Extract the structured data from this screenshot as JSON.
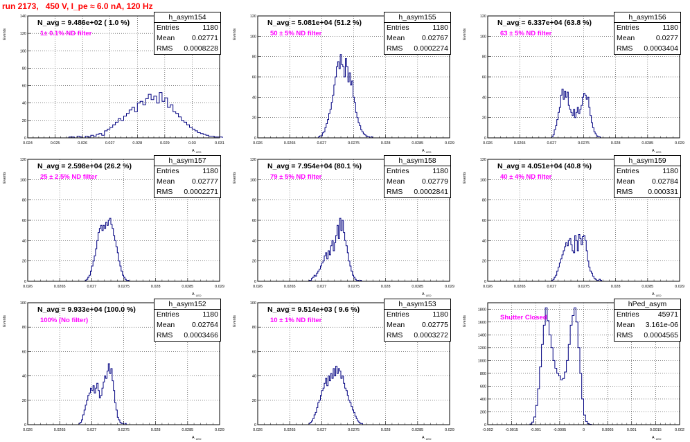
{
  "page": {
    "title": "run 2173,   450 V, I_pe ≈ 6.0 nA, 120 Hz",
    "title_color": "#ff0000",
    "hist_color": "#000080",
    "filter_color": "#ff00ff"
  },
  "panels": [
    {
      "hist_name": "h_asym154",
      "navg": "N_avg = 9.486e+02 ( 1.0 %)",
      "filter": "1± 0.1% ND filter",
      "stats": {
        "entries_label": "Entries",
        "entries": "1180",
        "mean_label": "Mean",
        "mean": "0.02771",
        "rms_label": "RMS",
        "rms": "0.0008228"
      }
    },
    {
      "hist_name": "h_asym155",
      "navg": "N_avg = 5.081e+04 (51.2 %)",
      "filter": "50 ± 5% ND filter",
      "stats": {
        "entries_label": "Entries",
        "entries": "1180",
        "mean_label": "Mean",
        "mean": "0.02767",
        "rms_label": "RMS",
        "rms": "0.0002274"
      }
    },
    {
      "hist_name": "h_asym156",
      "navg": "N_avg = 6.337e+04 (63.8 %)",
      "filter": "63 ± 5% ND filter",
      "stats": {
        "entries_label": "Entries",
        "entries": "1180",
        "mean_label": "Mean",
        "mean": "0.0277",
        "rms_label": "RMS",
        "rms": "0.0003404"
      }
    },
    {
      "hist_name": "h_asym157",
      "navg": "N_avg = 2.598e+04 (26.2 %)",
      "filter": "25 ± 2.5% ND filter",
      "stats": {
        "entries_label": "Entries",
        "entries": "1180",
        "mean_label": "Mean",
        "mean": "0.02777",
        "rms_label": "RMS",
        "rms": "0.0002271"
      }
    },
    {
      "hist_name": "h_asym158",
      "navg": "N_avg = 7.954e+04 (80.1 %)",
      "filter": "79 ± 5% ND filter",
      "stats": {
        "entries_label": "Entries",
        "entries": "1180",
        "mean_label": "Mean",
        "mean": "0.02779",
        "rms_label": "RMS",
        "rms": "0.0002841"
      }
    },
    {
      "hist_name": "h_asym159",
      "navg": "N_avg = 4.051e+04 (40.8 %)",
      "filter": "40 ± 4% ND filter",
      "stats": {
        "entries_label": "Entries",
        "entries": "1180",
        "mean_label": "Mean",
        "mean": "0.02784",
        "rms_label": "RMS",
        "rms": "0.000331"
      }
    },
    {
      "hist_name": "h_asym152",
      "navg": "N_avg = 9.933e+04 (100.0 %)",
      "filter": "100% (No filter)",
      "stats": {
        "entries_label": "Entries",
        "entries": "1180",
        "mean_label": "Mean",
        "mean": "0.02764",
        "rms_label": "RMS",
        "rms": "0.0003466"
      }
    },
    {
      "hist_name": "h_asym153",
      "navg": "N_avg = 9.514e+03 ( 9.6 %)",
      "filter": "10 ± 1% ND filter",
      "stats": {
        "entries_label": "Entries",
        "entries": "1180",
        "mean_label": "Mean",
        "mean": "0.02775",
        "rms_label": "RMS",
        "rms": "0.0003272"
      }
    },
    {
      "hist_name": "hPed_asym",
      "navg": "",
      "filter": "Shutter Closed",
      "stats": {
        "entries_label": "Entries",
        "entries": "45971",
        "mean_label": "Mean",
        "mean": "3.161e-06",
        "rms_label": "RMS",
        "rms": "0.0004565"
      }
    }
  ],
  "chart_data": [
    {
      "type": "histogram",
      "title": "h_asym154",
      "xlabel": "A_LED",
      "ylabel": "Events",
      "xlim": [
        0.024,
        0.031
      ],
      "ylim": [
        0,
        140
      ],
      "grid": true,
      "legend_position": "top-right",
      "xticks": [
        "0.024",
        "0.025",
        "0.026",
        "0.027",
        "0.028",
        "0.029",
        "0.03",
        "0.031"
      ],
      "yticks": [
        "0",
        "20",
        "40",
        "60",
        "80",
        "100",
        "120",
        "140"
      ],
      "bins": {
        "start": 0.0255,
        "width": 0.0001,
        "counts": [
          1,
          1,
          0,
          2,
          1,
          0,
          2,
          1,
          3,
          2,
          4,
          5,
          3,
          8,
          10,
          12,
          15,
          18,
          22,
          20,
          25,
          28,
          32,
          35,
          30,
          40,
          42,
          38,
          45,
          50,
          44,
          48,
          40,
          52,
          42,
          46,
          35,
          38,
          30,
          28,
          24,
          20,
          18,
          15,
          12,
          10,
          8,
          6,
          5,
          4,
          3,
          2,
          2,
          1,
          1,
          1
        ]
      }
    },
    {
      "type": "histogram",
      "title": "h_asym155",
      "xlabel": "A_LED",
      "ylabel": "Events",
      "xlim": [
        0.026,
        0.029
      ],
      "ylim": [
        0,
        120
      ],
      "grid": true,
      "legend_position": "top-right",
      "xticks": [
        "0.026",
        "0.0265",
        "0.027",
        "0.0275",
        "0.028",
        "0.0285",
        "0.029"
      ],
      "yticks": [
        "0",
        "20",
        "40",
        "60",
        "80",
        "100",
        "120"
      ],
      "bins": {
        "start": 0.02695,
        "width": 2e-05,
        "counts": [
          1,
          2,
          2,
          5,
          6,
          10,
          14,
          18,
          24,
          28,
          35,
          42,
          52,
          60,
          70,
          75,
          68,
          82,
          72,
          70,
          60,
          78,
          70,
          55,
          64,
          52,
          56,
          40,
          35,
          25,
          20,
          15,
          12,
          8,
          6,
          4,
          3,
          2,
          1,
          1,
          0,
          1
        ]
      }
    },
    {
      "type": "histogram",
      "title": "h_asym156",
      "xlabel": "A_LED",
      "ylabel": "Events",
      "xlim": [
        0.026,
        0.029
      ],
      "ylim": [
        0,
        120
      ],
      "grid": true,
      "legend_position": "top-right",
      "xticks": [
        "0.026",
        "0.0265",
        "0.027",
        "0.0275",
        "0.028",
        "0.0285",
        "0.029"
      ],
      "yticks": [
        "0",
        "20",
        "40",
        "60",
        "80",
        "100",
        "120"
      ],
      "bins": {
        "start": 0.027,
        "width": 2e-05,
        "counts": [
          1,
          3,
          8,
          12,
          18,
          25,
          30,
          42,
          48,
          38,
          46,
          40,
          45,
          32,
          28,
          25,
          22,
          28,
          20,
          25,
          30,
          24,
          28,
          32,
          40,
          44,
          42,
          38,
          40,
          30,
          22,
          15,
          10,
          6,
          4,
          2,
          1,
          1
        ]
      }
    },
    {
      "type": "histogram",
      "title": "h_asym157",
      "xlabel": "A_LED",
      "ylabel": "Events",
      "xlim": [
        0.026,
        0.029
      ],
      "ylim": [
        0,
        120
      ],
      "grid": true,
      "legend_position": "top-right",
      "xticks": [
        "0.026",
        "0.0265",
        "0.027",
        "0.0275",
        "0.028",
        "0.0285",
        "0.029"
      ],
      "yticks": [
        "0",
        "20",
        "40",
        "60",
        "80",
        "100",
        "120"
      ],
      "bins": {
        "start": 0.0269,
        "width": 2e-05,
        "counts": [
          1,
          2,
          4,
          6,
          10,
          15,
          20,
          25,
          32,
          40,
          48,
          52,
          55,
          50,
          55,
          52,
          58,
          55,
          60,
          62,
          56,
          52,
          45,
          40,
          34,
          28,
          20,
          15,
          10,
          6,
          4,
          2,
          1,
          1
        ]
      }
    },
    {
      "type": "histogram",
      "title": "h_asym158",
      "xlabel": "A_LED",
      "ylabel": "Events",
      "xlim": [
        0.026,
        0.029
      ],
      "ylim": [
        0,
        120
      ],
      "grid": true,
      "legend_position": "top-right",
      "xticks": [
        "0.026",
        "0.0265",
        "0.027",
        "0.0275",
        "0.028",
        "0.0285",
        "0.029"
      ],
      "yticks": [
        "0",
        "20",
        "40",
        "60",
        "80",
        "100",
        "120"
      ],
      "bins": {
        "start": 0.0268,
        "width": 2e-05,
        "counts": [
          1,
          1,
          3,
          4,
          6,
          5,
          8,
          10,
          12,
          15,
          18,
          20,
          25,
          28,
          22,
          30,
          26,
          35,
          40,
          30,
          38,
          45,
          55,
          42,
          62,
          50,
          60,
          48,
          40,
          35,
          28,
          20,
          15,
          10,
          6,
          4,
          2,
          1,
          1,
          0,
          1
        ]
      }
    },
    {
      "type": "histogram",
      "title": "h_asym159",
      "xlabel": "A_LED",
      "ylabel": "Events",
      "xlim": [
        0.026,
        0.029
      ],
      "ylim": [
        0,
        120
      ],
      "grid": true,
      "legend_position": "top-right",
      "xticks": [
        "0.026",
        "0.0265",
        "0.027",
        "0.0275",
        "0.028",
        "0.0285",
        "0.029"
      ],
      "yticks": [
        "0",
        "20",
        "40",
        "60",
        "80",
        "100",
        "120"
      ],
      "bins": {
        "start": 0.027,
        "width": 2e-05,
        "counts": [
          1,
          2,
          4,
          6,
          10,
          14,
          18,
          22,
          26,
          30,
          34,
          38,
          35,
          40,
          42,
          36,
          30,
          28,
          45,
          40,
          30,
          46,
          42,
          36,
          44,
          45,
          40,
          30,
          20,
          14,
          10,
          8,
          5,
          3,
          2,
          1,
          1,
          2,
          1
        ]
      }
    },
    {
      "type": "histogram",
      "title": "h_asym152",
      "xlabel": "A_LED",
      "ylabel": "Events",
      "xlim": [
        0.026,
        0.029
      ],
      "ylim": [
        0,
        100
      ],
      "grid": true,
      "legend_position": "top-right",
      "xticks": [
        "0.026",
        "0.0265",
        "0.027",
        "0.0275",
        "0.028",
        "0.0285",
        "0.029"
      ],
      "yticks": [
        "0",
        "20",
        "40",
        "60",
        "80",
        "100"
      ],
      "bins": {
        "start": 0.0268,
        "width": 2e-05,
        "counts": [
          1,
          2,
          4,
          8,
          12,
          16,
          20,
          24,
          26,
          30,
          28,
          32,
          26,
          30,
          34,
          28,
          22,
          24,
          30,
          35,
          40,
          38,
          44,
          50,
          42,
          46,
          36,
          28,
          18,
          12,
          6,
          4,
          2,
          1,
          1,
          0,
          1
        ]
      }
    },
    {
      "type": "histogram",
      "title": "h_asym153",
      "xlabel": "A_LED",
      "ylabel": "Events",
      "xlim": [
        0.026,
        0.029
      ],
      "ylim": [
        0,
        100
      ],
      "grid": true,
      "legend_position": "top-right",
      "xticks": [
        "0.026",
        "0.0265",
        "0.027",
        "0.0275",
        "0.028",
        "0.0285",
        "0.029"
      ],
      "yticks": [
        "0",
        "20",
        "40",
        "60",
        "80",
        "100"
      ],
      "bins": {
        "start": 0.0268,
        "width": 2e-05,
        "counts": [
          1,
          2,
          3,
          5,
          8,
          10,
          14,
          18,
          20,
          24,
          28,
          30,
          34,
          38,
          32,
          40,
          36,
          42,
          38,
          46,
          40,
          48,
          42,
          46,
          44,
          38,
          40,
          34,
          30,
          28,
          24,
          20,
          18,
          15,
          12,
          10,
          7,
          5,
          3,
          2,
          1,
          1
        ]
      }
    },
    {
      "type": "histogram",
      "title": "hPed_asym",
      "xlabel": "A_LED",
      "ylabel": "Events",
      "xlim": [
        -0.002,
        0.002
      ],
      "ylim": [
        0,
        1900
      ],
      "grid": true,
      "legend_position": "top-right",
      "xticks": [
        "-0.002",
        "-0.0015",
        "-0.001",
        "-0.0005",
        "0",
        "0.0005",
        "0.001",
        "0.0015",
        "0.002"
      ],
      "yticks": [
        "0",
        "200",
        "400",
        "600",
        "800",
        "1000",
        "1200",
        "1400",
        "1600",
        "1800"
      ],
      "bins": {
        "start": -0.00112,
        "width": 4e-05,
        "counts": [
          10,
          40,
          120,
          300,
          560,
          900,
          1250,
          1550,
          1820,
          1620,
          1400,
          1200,
          1000,
          880,
          800,
          760,
          700,
          720,
          820,
          1000,
          1250,
          1550,
          1700,
          1820,
          1600,
          1200,
          800,
          400,
          150,
          50,
          15,
          5
        ]
      }
    }
  ]
}
